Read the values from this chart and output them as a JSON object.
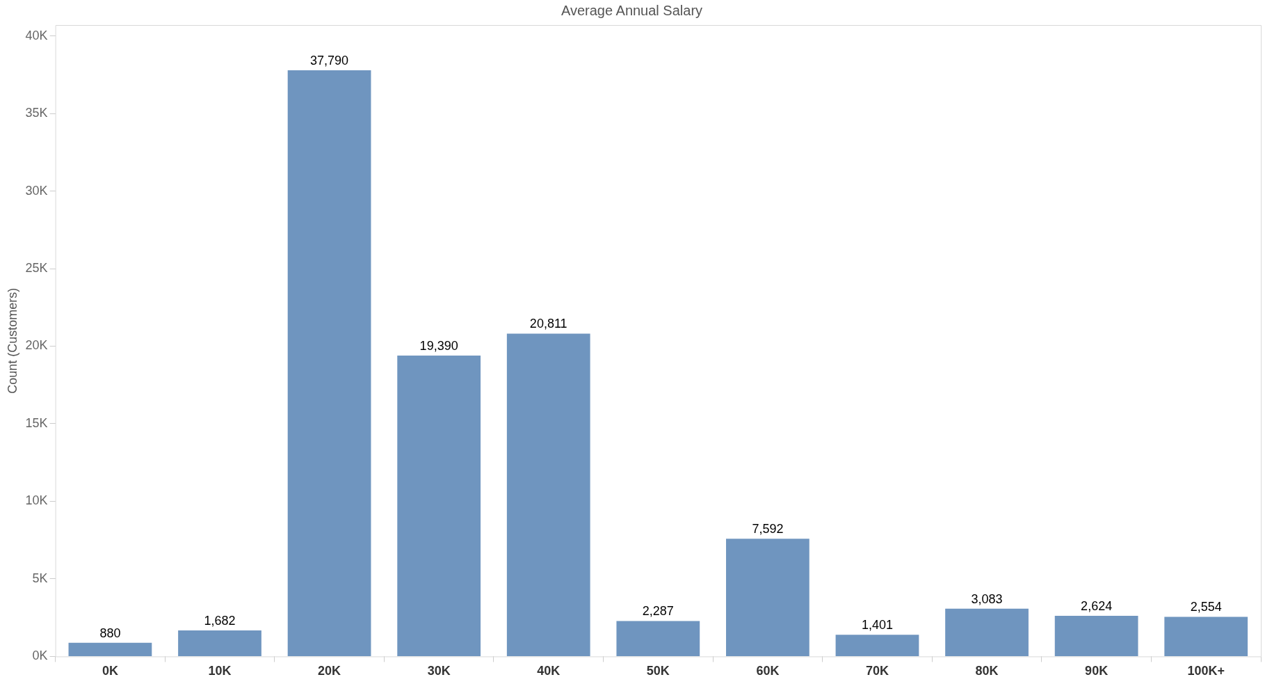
{
  "chart_data": {
    "type": "bar",
    "title": "Average Annual Salary",
    "ylabel": "Count (Customers)",
    "categories": [
      "0K",
      "10K",
      "20K",
      "30K",
      "40K",
      "50K",
      "60K",
      "70K",
      "80K",
      "90K",
      "100K+"
    ],
    "values": [
      880,
      1682,
      37790,
      19390,
      20811,
      2287,
      7592,
      1401,
      3083,
      2624,
      2554
    ],
    "value_labels": [
      "880",
      "1,682",
      "37,790",
      "19,390",
      "20,811",
      "2,287",
      "7,592",
      "1,401",
      "3,083",
      "2,624",
      "2,554"
    ],
    "color": "#6f95bf",
    "ylim": [
      0,
      40700
    ],
    "yticks": [
      {
        "value": 0,
        "label": "0K"
      },
      {
        "value": 5000,
        "label": "5K"
      },
      {
        "value": 10000,
        "label": "10K"
      },
      {
        "value": 15000,
        "label": "15K"
      },
      {
        "value": 20000,
        "label": "20K"
      },
      {
        "value": 25000,
        "label": "25K"
      },
      {
        "value": 30000,
        "label": "30K"
      },
      {
        "value": 35000,
        "label": "35K"
      },
      {
        "value": 40000,
        "label": "40K"
      }
    ],
    "grid": false,
    "legend": false
  }
}
